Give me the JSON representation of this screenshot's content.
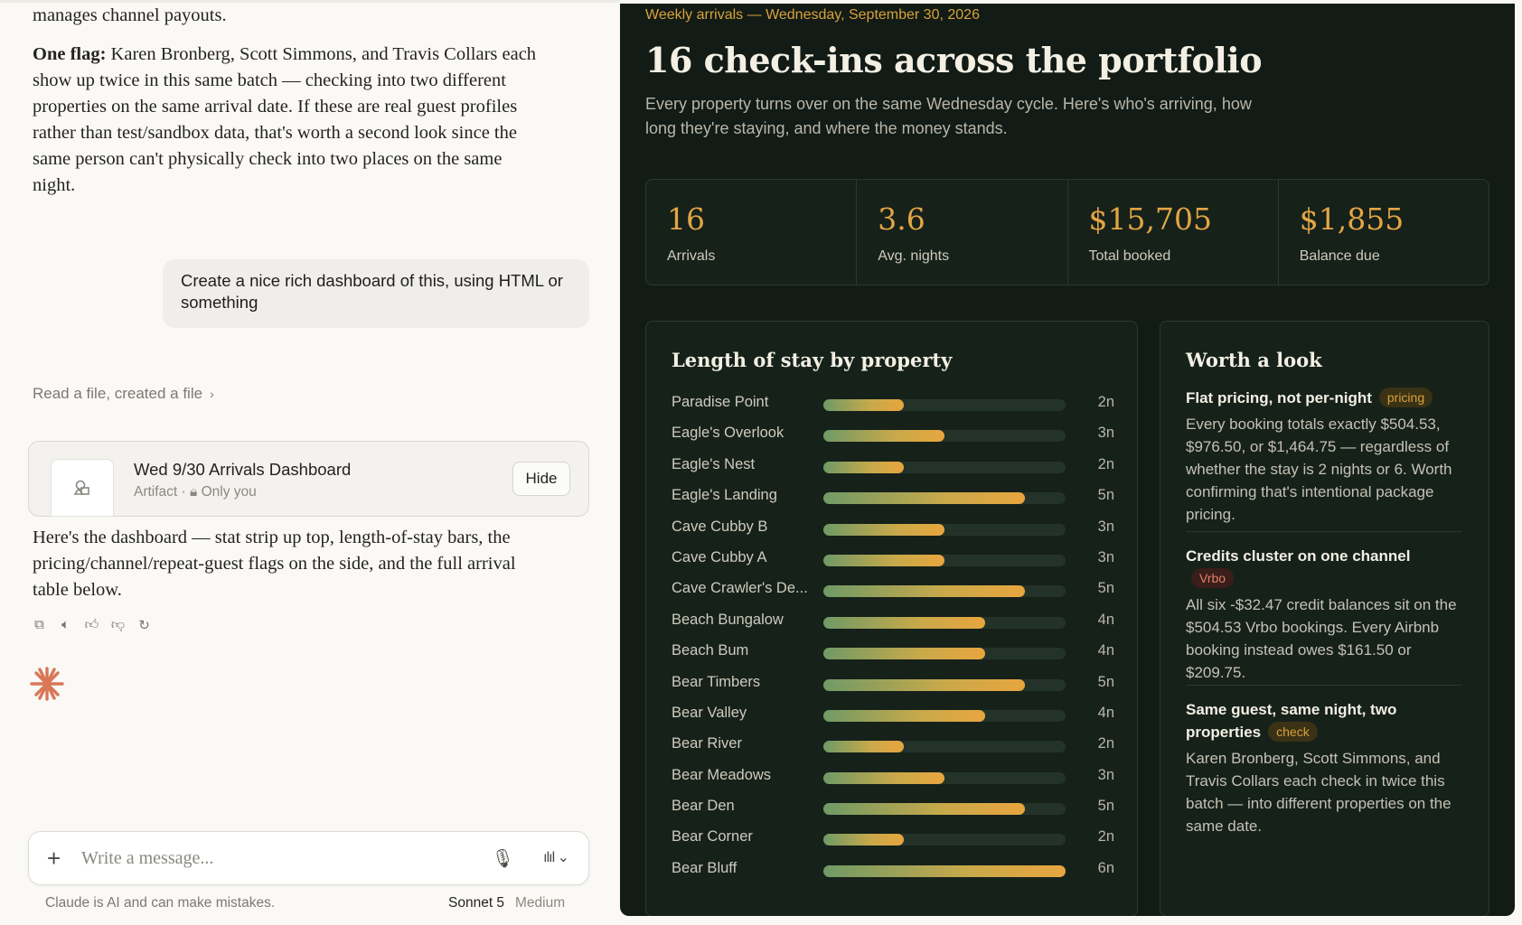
{
  "chat": {
    "paragraph_top": "manages channel payouts.",
    "flag_paragraph": {
      "lead": "One flag:",
      "text": " Karen Bronberg, Scott Simmons, and Travis Collars each show up twice in this same batch — checking into two different properties on the same arrival date. If these are real guest profiles rather than test/sandbox data, that's worth a second look since the same person can't physically check into two places on the same night."
    },
    "user_message": "Create a nice rich dashboard of this, using HTML or something",
    "tool_summary": "Read a file, created a file",
    "artifact": {
      "title": "Wed 9/30 Arrivals Dashboard",
      "type": "Artifact",
      "visibility": "Only you",
      "hide_label": "Hide"
    },
    "answer": "Here's the dashboard — stat strip up top, length-of-stay bars, the pricing/channel/repeat-guest flags on the side, and the full arrival table below.",
    "composer": {
      "placeholder": "Write a message..."
    },
    "disclaimer": "Claude is AI and can make mistakes.",
    "model": "Sonnet 5",
    "mode": "Medium",
    "icons": [
      "copy-icon",
      "speaker-icon",
      "thumbs-up-icon",
      "thumbs-down-icon",
      "retry-icon",
      "plus-icon",
      "mic-icon",
      "voice-icon",
      "chevron-down-icon",
      "lock-icon",
      "chevron-right-icon"
    ]
  },
  "dashboard": {
    "eyebrow": "Weekly arrivals — Wednesday, September 30, 2026",
    "title": "16 check-ins across the portfolio",
    "subtitle": "Every property turns over on the same Wednesday cycle. Here's who's arriving, how long they're staying, and where the money stands.",
    "stats": [
      {
        "value": "16",
        "label": "Arrivals"
      },
      {
        "value": "3.6",
        "label": "Avg. nights"
      },
      {
        "value": "$15,705",
        "label": "Total booked"
      },
      {
        "value": "$1,855",
        "label": "Balance due"
      }
    ],
    "accent_color": "#e3a545",
    "stay_title": "Length of stay by property",
    "chart_data": {
      "type": "bar",
      "orientation": "horizontal",
      "title": "Length of stay by property",
      "max": 6,
      "categories": [
        "Paradise Point",
        "Eagle's Overlook",
        "Eagle's Nest",
        "Eagle's Landing",
        "Cave Cubby B",
        "Cave Cubby A",
        "Cave Crawler's De...",
        "Beach Bungalow",
        "Beach Bum",
        "Bear Timbers",
        "Bear Valley",
        "Bear River",
        "Bear Meadows",
        "Bear Den",
        "Bear Corner",
        "Bear Bluff"
      ],
      "values": [
        2,
        3,
        2,
        5,
        3,
        3,
        5,
        4,
        4,
        5,
        4,
        2,
        3,
        5,
        2,
        6
      ],
      "value_labels": [
        "2n",
        "3n",
        "2n",
        "5n",
        "3n",
        "3n",
        "5n",
        "4n",
        "4n",
        "5n",
        "4n",
        "2n",
        "3n",
        "5n",
        "2n",
        "6n"
      ]
    },
    "flags_title": "Worth a look",
    "flags": [
      {
        "head": "Flat pricing, not per-night",
        "tag": "pricing",
        "body": "Every booking totals exactly $504.53, $976.50, or $1,464.75 — regardless of whether the stay is 2 nights or 6. Worth confirming that's intentional package pricing."
      },
      {
        "head": "Credits cluster on one channel",
        "tag": "Vrbo",
        "body": "All six -$32.47 credit balances sit on the $504.53 Vrbo bookings. Every Airbnb booking instead owes $161.50 or $209.75."
      },
      {
        "head": "Same guest, same night, two properties",
        "tag": "check",
        "body": "Karen Bronberg, Scott Simmons, and Travis Collars each check in twice this batch — into different properties on the same date."
      }
    ]
  }
}
